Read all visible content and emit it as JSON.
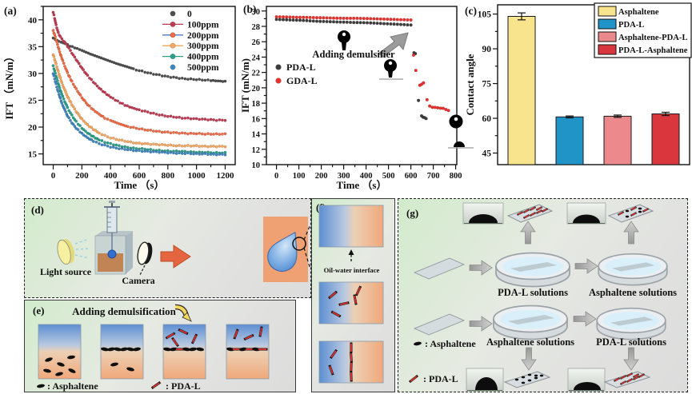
{
  "figure": {
    "panel_labels": {
      "a": "(a)",
      "b": "(b)",
      "c": "(c)",
      "d": "(d)",
      "e": "(e)",
      "f": "(f)",
      "g": "(g)"
    }
  },
  "chart_data": [
    {
      "id": "a",
      "type": "scatter",
      "xlabel": "Time （s）",
      "ylabel": "IFT （mN/m）",
      "xlim": [
        -70,
        1270
      ],
      "ylim": [
        13,
        42.5
      ],
      "xticks": [
        0,
        200,
        400,
        600,
        800,
        1000,
        1200
      ],
      "xminor": 100,
      "yticks": [
        15,
        20,
        25,
        30,
        35,
        40
      ],
      "yminor": 2.5,
      "legend_position": "top-right",
      "series": [
        {
          "name": "0",
          "color": "#4f4f4f",
          "legend_line": false,
          "points": [
            [
              0,
              36.6
            ],
            [
              15,
              36.3
            ],
            [
              40,
              35.9
            ],
            [
              70,
              35.6
            ],
            [
              100,
              35.3
            ],
            [
              150,
              34.8
            ],
            [
              200,
              34.3
            ],
            [
              260,
              33.6
            ],
            [
              320,
              33.0
            ],
            [
              380,
              32.4
            ],
            [
              440,
              31.8
            ],
            [
              500,
              31.3
            ],
            [
              560,
              30.8
            ],
            [
              620,
              30.4
            ],
            [
              680,
              30.0
            ],
            [
              740,
              29.7
            ],
            [
              800,
              29.4
            ],
            [
              860,
              29.2
            ],
            [
              920,
              29.0
            ],
            [
              980,
              28.9
            ],
            [
              1040,
              28.8
            ],
            [
              1100,
              28.7
            ],
            [
              1150,
              28.6
            ],
            [
              1200,
              28.5
            ]
          ]
        },
        {
          "name": "100ppm",
          "color": "#c03a52",
          "legend_line": true,
          "points": [
            [
              0,
              41.4
            ],
            [
              10,
              40.3
            ],
            [
              20,
              39.0
            ],
            [
              35,
              37.6
            ],
            [
              50,
              36.8
            ],
            [
              70,
              36.1
            ],
            [
              90,
              35.5
            ],
            [
              110,
              34.7
            ],
            [
              140,
              33.4
            ],
            [
              170,
              32.2
            ],
            [
              200,
              31.0
            ],
            [
              240,
              29.6
            ],
            [
              280,
              28.4
            ],
            [
              320,
              27.3
            ],
            [
              360,
              26.4
            ],
            [
              400,
              25.6
            ],
            [
              450,
              24.8
            ],
            [
              500,
              24.1
            ],
            [
              550,
              23.6
            ],
            [
              600,
              23.2
            ],
            [
              660,
              22.8
            ],
            [
              720,
              22.4
            ],
            [
              780,
              22.1
            ],
            [
              840,
              21.9
            ],
            [
              900,
              21.7
            ],
            [
              960,
              21.6
            ],
            [
              1020,
              21.5
            ],
            [
              1080,
              21.4
            ],
            [
              1140,
              21.3
            ],
            [
              1200,
              21.3
            ]
          ]
        },
        {
          "name": "200ppm",
          "color": "#ef6a45",
          "legend_line": true,
          "line_color": "#4b77c9",
          "points": [
            [
              0,
              38.0
            ],
            [
              15,
              36.8
            ],
            [
              30,
              35.4
            ],
            [
              45,
              34.0
            ],
            [
              60,
              32.8
            ],
            [
              80,
              31.4
            ],
            [
              100,
              30.1
            ],
            [
              130,
              28.5
            ],
            [
              160,
              27.1
            ],
            [
              200,
              25.5
            ],
            [
              240,
              24.2
            ],
            [
              280,
              23.2
            ],
            [
              320,
              22.4
            ],
            [
              360,
              21.7
            ],
            [
              400,
              21.2
            ],
            [
              460,
              20.6
            ],
            [
              520,
              20.1
            ],
            [
              580,
              19.8
            ],
            [
              640,
              19.5
            ],
            [
              700,
              19.3
            ],
            [
              760,
              19.1
            ],
            [
              820,
              19.0
            ],
            [
              880,
              18.9
            ],
            [
              940,
              18.8
            ],
            [
              1000,
              18.8
            ],
            [
              1060,
              18.7
            ],
            [
              1120,
              18.7
            ],
            [
              1200,
              18.7
            ]
          ]
        },
        {
          "name": "300ppm",
          "color": "#f5a75f",
          "legend_line": true,
          "points": [
            [
              0,
              33.5
            ],
            [
              15,
              32.2
            ],
            [
              30,
              30.8
            ],
            [
              45,
              29.5
            ],
            [
              60,
              28.3
            ],
            [
              80,
              26.9
            ],
            [
              100,
              25.7
            ],
            [
              130,
              24.2
            ],
            [
              160,
              22.9
            ],
            [
              200,
              21.5
            ],
            [
              240,
              20.4
            ],
            [
              280,
              19.6
            ],
            [
              320,
              18.9
            ],
            [
              360,
              18.4
            ],
            [
              400,
              18.0
            ],
            [
              460,
              17.6
            ],
            [
              520,
              17.3
            ],
            [
              580,
              17.0
            ],
            [
              640,
              16.9
            ],
            [
              700,
              16.8
            ],
            [
              760,
              16.7
            ],
            [
              820,
              16.6
            ],
            [
              880,
              16.5
            ],
            [
              940,
              16.5
            ],
            [
              1000,
              16.5
            ],
            [
              1060,
              16.4
            ],
            [
              1120,
              16.4
            ],
            [
              1200,
              16.4
            ]
          ]
        },
        {
          "name": "400ppm",
          "color": "#2ba089",
          "legend_line": true,
          "points": [
            [
              0,
              31.4
            ],
            [
              15,
              30.0
            ],
            [
              30,
              28.6
            ],
            [
              45,
              27.3
            ],
            [
              60,
              26.1
            ],
            [
              80,
              24.8
            ],
            [
              100,
              23.6
            ],
            [
              130,
              22.2
            ],
            [
              160,
              21.0
            ],
            [
              200,
              19.8
            ],
            [
              240,
              18.9
            ],
            [
              280,
              18.2
            ],
            [
              320,
              17.6
            ],
            [
              360,
              17.2
            ],
            [
              400,
              16.9
            ],
            [
              460,
              16.5
            ],
            [
              520,
              16.2
            ],
            [
              580,
              16.0
            ],
            [
              640,
              15.9
            ],
            [
              700,
              15.7
            ],
            [
              760,
              15.6
            ],
            [
              820,
              15.5
            ],
            [
              880,
              15.5
            ],
            [
              940,
              15.4
            ],
            [
              1000,
              15.3
            ],
            [
              1060,
              15.3
            ],
            [
              1120,
              15.2
            ],
            [
              1200,
              15.2
            ]
          ]
        },
        {
          "name": "500ppm",
          "color": "#3f86c0",
          "legend_line": false,
          "points": [
            [
              0,
              30.0
            ],
            [
              15,
              28.5
            ],
            [
              30,
              27.0
            ],
            [
              45,
              25.7
            ],
            [
              60,
              24.5
            ],
            [
              80,
              23.2
            ],
            [
              100,
              22.1
            ],
            [
              130,
              20.8
            ],
            [
              160,
              19.8
            ],
            [
              200,
              18.8
            ],
            [
              240,
              18.0
            ],
            [
              280,
              17.4
            ],
            [
              320,
              16.9
            ],
            [
              360,
              16.6
            ],
            [
              400,
              16.3
            ],
            [
              460,
              16.0
            ],
            [
              520,
              15.8
            ],
            [
              580,
              15.6
            ],
            [
              640,
              15.5
            ],
            [
              700,
              15.4
            ],
            [
              760,
              15.3
            ],
            [
              820,
              15.2
            ],
            [
              880,
              15.1
            ],
            [
              940,
              15.1
            ],
            [
              1000,
              15.0
            ],
            [
              1060,
              15.0
            ],
            [
              1120,
              14.9
            ],
            [
              1200,
              14.9
            ]
          ]
        }
      ]
    },
    {
      "id": "b",
      "type": "scatter",
      "xlabel": "Time （s）",
      "ylabel": "IFT (mN/m)",
      "annotation": "Adding demulsifier",
      "xlim": [
        -45,
        805
      ],
      "ylim": [
        10,
        30.6
      ],
      "xticks": [
        0,
        100,
        200,
        300,
        400,
        500,
        600,
        700,
        800
      ],
      "xminor": 50,
      "yticks": [
        10,
        12,
        14,
        16,
        18,
        20,
        22,
        24,
        26,
        28,
        30
      ],
      "yminor": 1,
      "legend_position": "mid-left",
      "series": [
        {
          "name": "PDA-L",
          "color": "#3d3d3d",
          "dense_until": 600,
          "points": [
            [
              0,
              28.9
            ],
            [
              60,
              28.85
            ],
            [
              120,
              28.8
            ],
            [
              180,
              28.7
            ],
            [
              240,
              28.65
            ],
            [
              300,
              28.6
            ],
            [
              360,
              28.55
            ],
            [
              420,
              28.5
            ],
            [
              480,
              28.4
            ],
            [
              540,
              28.3
            ],
            [
              600,
              28.2
            ],
            [
              614,
              24.6
            ],
            [
              620,
              24.4
            ],
            [
              634,
              18.3
            ],
            [
              648,
              16.3
            ],
            [
              654,
              16.2
            ],
            [
              661,
              16.1
            ],
            [
              668,
              16.0
            ]
          ]
        },
        {
          "name": "GDA-L",
          "color": "#e8312c",
          "dense_until": 600,
          "points": [
            [
              0,
              29.25
            ],
            [
              60,
              29.2
            ],
            [
              120,
              29.15
            ],
            [
              180,
              29.1
            ],
            [
              240,
              29.05
            ],
            [
              300,
              29.0
            ],
            [
              360,
              29.0
            ],
            [
              420,
              28.95
            ],
            [
              480,
              28.9
            ],
            [
              540,
              28.85
            ],
            [
              600,
              28.8
            ],
            [
              612,
              24.2
            ],
            [
              622,
              22.3
            ],
            [
              640,
              20.3
            ],
            [
              648,
              20.5
            ],
            [
              656,
              20.6
            ],
            [
              672,
              18.4
            ],
            [
              684,
              17.6
            ],
            [
              696,
              17.5
            ],
            [
              708,
              17.5
            ],
            [
              720,
              17.4
            ],
            [
              732,
              17.3
            ],
            [
              744,
              17.3
            ],
            [
              756,
              17.2
            ],
            [
              768,
              17.1
            ]
          ]
        }
      ]
    },
    {
      "id": "c",
      "type": "bar",
      "ylabel": "Contact angle",
      "ylim": [
        40,
        109
      ],
      "yticks": [
        45,
        60,
        75,
        90,
        105
      ],
      "yminor": 7.5,
      "legend_position": "top-right",
      "categories": [
        "Asphaltene",
        "PDA-L",
        "Asphaltene-PDA-L",
        "PDA-L-Asphaltene"
      ],
      "values": [
        104,
        60.6,
        60.9,
        61.9
      ],
      "errors": [
        1.5,
        0.4,
        0.5,
        0.7
      ],
      "colors": [
        "#f8e48d",
        "#2094c7",
        "#ec898d",
        "#d9363e"
      ]
    }
  ],
  "diagram_d": {
    "light_source_label": "Light source",
    "camera_label": "Camera"
  },
  "diagram_e": {
    "title": "Adding demulsification",
    "legend_asphaltene": ": Asphaltene",
    "legend_pdal": ": PDA-L"
  },
  "diagram_f": {
    "interface_label": "Oil-water interface"
  },
  "diagram_g": {
    "dish1_label": "PDA-L solutions",
    "dish2_label": "Asphaltene solutions",
    "dish3_label": "Asphaltene solutions",
    "dish4_label": "PDA-L solutions",
    "legend_asphaltene": ": Asphaltene",
    "legend_pdal": ": PDA-L"
  }
}
